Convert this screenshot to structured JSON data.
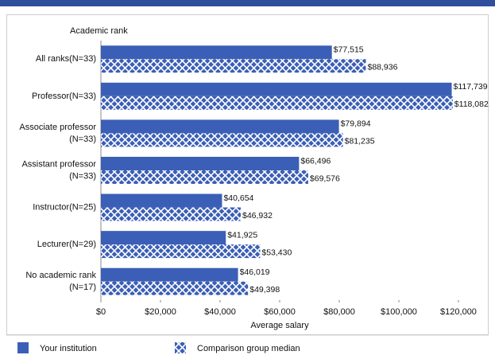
{
  "chart_data": {
    "type": "hbar",
    "y_axis_title": "Academic rank",
    "x_axis_title": "Average salary",
    "categories": [
      [
        "All ranks(N=33)"
      ],
      [
        "Professor(N=33)"
      ],
      [
        "Associate professor",
        "(N=33)"
      ],
      [
        "Assistant professor",
        "(N=33)"
      ],
      [
        "Instructor(N=25)"
      ],
      [
        "Lecturer(N=29)"
      ],
      [
        "No academic rank",
        "(N=17)"
      ]
    ],
    "series": [
      {
        "name": "Your institution",
        "color": "#3b5fb6",
        "pattern": "solid",
        "values": [
          77515,
          117739,
          79894,
          66496,
          40654,
          41925,
          46019
        ],
        "value_labels": [
          "$77,515",
          "$117,739",
          "$79,894",
          "$66,496",
          "$40,654",
          "$41,925",
          "$46,019"
        ]
      },
      {
        "name": "Comparison group median",
        "color": "#3b5fb6",
        "pattern": "crosshatch",
        "values": [
          88936,
          118082,
          81235,
          69576,
          46932,
          53430,
          49398
        ],
        "value_labels": [
          "$88,936",
          "$118,082",
          "$81,235",
          "$69,576",
          "$46,932",
          "$53,430",
          "$49,398"
        ]
      }
    ],
    "xlim": [
      0,
      120000
    ],
    "xticks": [
      {
        "value": 0,
        "label": "$0"
      },
      {
        "value": 20000,
        "label": "$20,000"
      },
      {
        "value": 40000,
        "label": "$40,000"
      },
      {
        "value": 60000,
        "label": "$60,000"
      },
      {
        "value": 80000,
        "label": "$80,000"
      },
      {
        "value": 100000,
        "label": "$100,000"
      },
      {
        "value": 120000,
        "label": "$120,000"
      }
    ]
  }
}
